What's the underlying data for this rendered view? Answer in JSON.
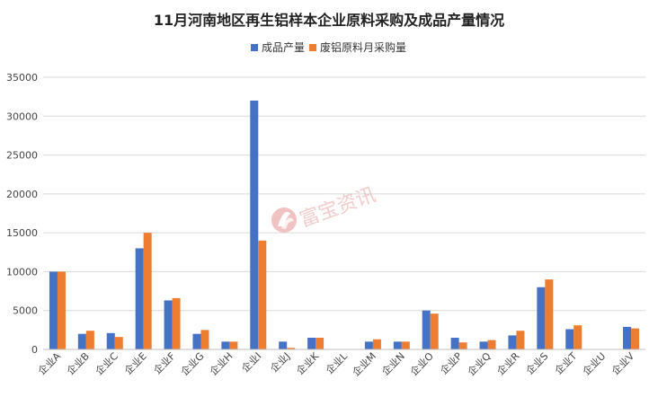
{
  "chart_data": {
    "type": "bar",
    "title": "11月河南地区再生铝样本企业原料采购及成品产量情况",
    "categories": [
      "企业A",
      "企业B",
      "企业C",
      "企业E",
      "企业F",
      "企业G",
      "企业H",
      "企业I",
      "企业J",
      "企业K",
      "企业L",
      "企业M",
      "企业N",
      "企业O",
      "企业P",
      "企业Q",
      "企业R",
      "企业S",
      "企业T",
      "企业U",
      "企业V"
    ],
    "series": [
      {
        "name": "成品产量",
        "color": "#4472c4",
        "values": [
          10000,
          2000,
          2100,
          13000,
          6300,
          2000,
          1000,
          32000,
          1000,
          1500,
          0,
          1000,
          1000,
          5000,
          1500,
          1000,
          1800,
          8000,
          2600,
          0,
          2900
        ]
      },
      {
        "name": "废铝原料月采购量",
        "color": "#ed7d31",
        "values": [
          10000,
          2400,
          1600,
          15000,
          6600,
          2500,
          1000,
          14000,
          200,
          1500,
          0,
          1300,
          1000,
          4600,
          900,
          1200,
          2400,
          9000,
          3100,
          0,
          2700
        ]
      }
    ],
    "ylim": [
      0,
      35000
    ],
    "yticks": [
      "0",
      "5000",
      "10000",
      "15000",
      "20000",
      "25000",
      "30000",
      "35000"
    ],
    "grid": true,
    "legend_position": "top-center"
  },
  "watermark": {
    "text": "富宝资讯",
    "color": "#e07a7a"
  }
}
